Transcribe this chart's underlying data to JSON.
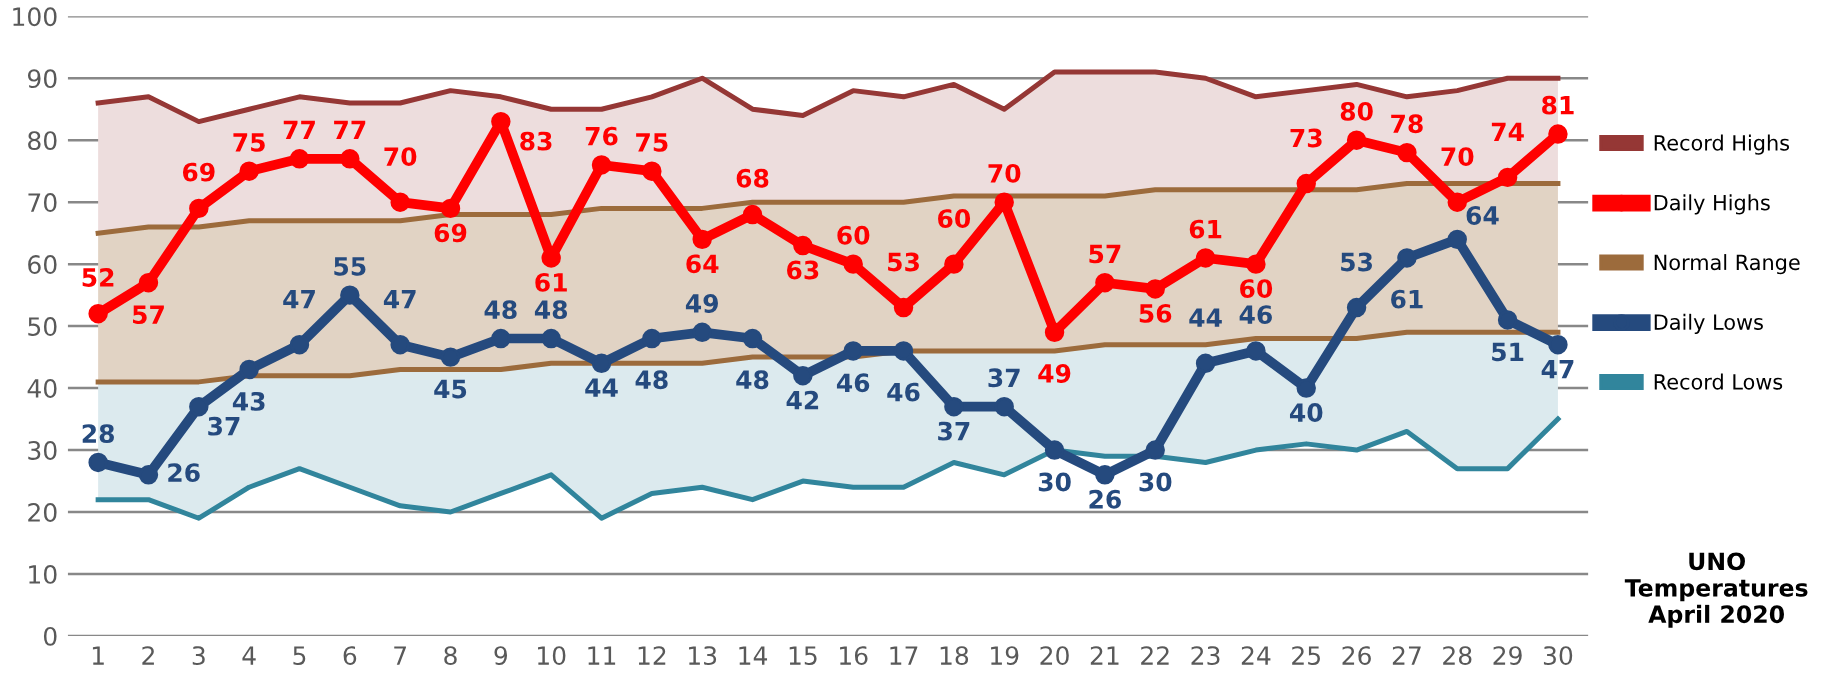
{
  "chart_data": {
    "type": "line",
    "title": "UNO\nTemperatures\nApril 2020",
    "categories": [
      "1",
      "2",
      "3",
      "4",
      "5",
      "6",
      "7",
      "8",
      "9",
      "10",
      "11",
      "12",
      "13",
      "14",
      "15",
      "16",
      "17",
      "18",
      "19",
      "20",
      "21",
      "22",
      "23",
      "24",
      "25",
      "26",
      "27",
      "28",
      "29",
      "30"
    ],
    "series": [
      {
        "name": "Record Highs",
        "color": "#953735",
        "values": [
          86,
          87,
          83,
          85,
          87,
          86,
          86,
          88,
          87,
          85,
          85,
          87,
          90,
          85,
          84,
          88,
          87,
          89,
          85,
          91,
          91,
          91,
          90,
          87,
          88,
          89,
          87,
          88,
          90,
          90
        ],
        "lower": [
          65,
          66,
          66,
          67,
          67,
          67,
          67,
          68,
          68,
          68,
          69,
          69,
          69,
          70,
          70,
          70,
          70,
          71,
          71,
          71,
          71,
          72,
          72,
          72,
          72,
          72,
          73,
          73,
          73,
          73
        ],
        "upper": [
          86,
          87,
          83,
          85,
          87,
          86,
          86,
          88,
          87,
          85,
          85,
          87,
          90,
          85,
          84,
          88,
          87,
          89,
          85,
          91,
          91,
          91,
          90,
          87,
          88,
          89,
          87,
          88,
          90,
          90
        ]
      },
      {
        "name": "Daily Highs",
        "color": "#ff0000",
        "marker": "circle",
        "values": [
          52,
          57,
          69,
          75,
          77,
          77,
          70,
          69,
          83,
          61,
          76,
          75,
          64,
          68,
          63,
          60,
          53,
          60,
          70,
          49,
          57,
          56,
          61,
          60,
          73,
          80,
          78,
          70,
          74,
          81
        ],
        "value_labels": [
          "52",
          "57",
          "69",
          "75",
          "77",
          "77",
          "70",
          "69",
          "83",
          "61",
          "76",
          "75",
          "64",
          "68",
          "63",
          "60",
          "53",
          "60",
          "70",
          "49",
          "57",
          "56",
          "61",
          "60",
          "73",
          "80",
          "78",
          "70",
          "74",
          "81"
        ]
      },
      {
        "name": "Normal Range",
        "color": "#9c6b3c",
        "values": [
          65,
          66,
          66,
          67,
          67,
          67,
          67,
          68,
          68,
          68,
          69,
          69,
          69,
          70,
          70,
          70,
          70,
          71,
          71,
          71,
          71,
          72,
          72,
          72,
          72,
          72,
          73,
          73,
          73,
          73
        ],
        "lower": [
          41,
          41,
          41,
          42,
          42,
          42,
          43,
          43,
          43,
          44,
          44,
          44,
          44,
          45,
          45,
          45,
          46,
          46,
          46,
          46,
          47,
          47,
          47,
          48,
          48,
          48,
          49,
          49,
          49,
          49
        ],
        "upper": [
          65,
          66,
          66,
          67,
          67,
          67,
          67,
          68,
          68,
          68,
          69,
          69,
          69,
          70,
          70,
          70,
          70,
          71,
          71,
          71,
          71,
          72,
          72,
          72,
          72,
          72,
          73,
          73,
          73,
          73
        ]
      },
      {
        "color": "#9c6b3c",
        "values": [
          41,
          41,
          41,
          42,
          42,
          42,
          43,
          43,
          43,
          44,
          44,
          44,
          44,
          45,
          45,
          45,
          46,
          46,
          46,
          46,
          47,
          47,
          47,
          48,
          48,
          48,
          49,
          49,
          49,
          49
        ]
      },
      {
        "name": "Daily Lows",
        "color": "#254a7e",
        "marker": "circle",
        "values": [
          28,
          26,
          37,
          43,
          47,
          55,
          47,
          45,
          48,
          48,
          44,
          48,
          49,
          48,
          42,
          46,
          46,
          37,
          37,
          30,
          26,
          30,
          44,
          46,
          40,
          53,
          61,
          64,
          51,
          47
        ],
        "value_labels": [
          "28",
          "26",
          "37",
          "43",
          "47",
          "55",
          "47",
          "45",
          "48",
          "48",
          "44",
          "48",
          "49",
          "48",
          "42",
          "46",
          "46",
          "37",
          "37",
          "30",
          "26",
          "30",
          "44",
          "46",
          "40",
          "53",
          "61",
          "64",
          "51",
          "47"
        ]
      },
      {
        "name": "Record Lows",
        "color": "#31859c",
        "values": [
          22,
          22,
          19,
          24,
          27,
          24,
          21,
          20,
          23,
          26,
          19,
          23,
          24,
          22,
          25,
          24,
          24,
          28,
          26,
          30,
          29,
          29,
          28,
          30,
          31,
          30,
          33,
          27,
          27,
          35
        ],
        "lower": [
          22,
          22,
          19,
          24,
          27,
          24,
          21,
          20,
          23,
          26,
          19,
          23,
          24,
          22,
          25,
          24,
          24,
          28,
          26,
          30,
          29,
          29,
          28,
          30,
          31,
          30,
          33,
          27,
          27,
          35
        ],
        "upper": [
          41,
          41,
          41,
          42,
          42,
          42,
          43,
          43,
          43,
          44,
          44,
          44,
          44,
          45,
          45,
          45,
          46,
          46,
          46,
          46,
          47,
          47,
          47,
          48,
          48,
          48,
          49,
          49,
          49,
          49
        ]
      }
    ],
    "ylim": [
      0,
      100
    ],
    "yticks": [
      0,
      10,
      20,
      30,
      40,
      50,
      60,
      70,
      80,
      90,
      100
    ],
    "grid": "y",
    "legend": "right"
  }
}
